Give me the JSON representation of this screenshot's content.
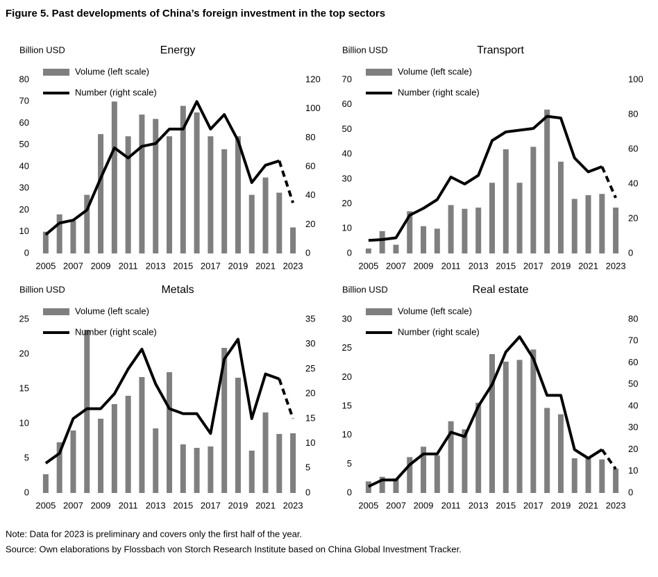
{
  "title": "Figure 5. Past developments of China’s foreign investment in the top sectors",
  "notes": [
    "Note: Data for 2023 is preliminary and covers only the first half of the year.",
    "Source: Own elaborations by Flossbach von Storch Research Institute based on China Global Investment Tracker."
  ],
  "chart_data": [
    {
      "type": "bar_line",
      "title": "Energy",
      "ylabel": "Billion USD",
      "categories": [
        "2005",
        null,
        "2007",
        null,
        "2009",
        null,
        "2011",
        null,
        "2013",
        null,
        "2015",
        null,
        "2017",
        null,
        "2019",
        null,
        "2021",
        null,
        "2023"
      ],
      "series": [
        {
          "name": "Volume (left scale)",
          "type": "bar",
          "color": "#7f7f7f",
          "values": [
            10,
            18,
            15,
            27,
            55,
            70,
            54,
            64,
            62,
            54,
            68,
            65,
            54,
            48,
            54,
            27,
            35,
            28,
            12
          ]
        },
        {
          "name": "Number (right scale)",
          "type": "line",
          "axis": "y2",
          "color": "#000000",
          "last_segment_style": "dashed",
          "values": [
            13,
            21,
            23,
            30,
            52,
            73,
            66,
            74,
            76,
            86,
            86,
            105,
            86,
            96,
            78,
            49,
            61,
            64,
            35
          ]
        }
      ],
      "ylim": [
        0,
        80
      ],
      "yticks": [
        0,
        10,
        20,
        30,
        40,
        50,
        60,
        70,
        80
      ],
      "y2lim": [
        0,
        120
      ],
      "y2ticks": [
        0,
        20,
        40,
        60,
        80,
        100,
        120
      ]
    },
    {
      "type": "bar_line",
      "title": "Transport",
      "ylabel": "Billion USD",
      "categories": [
        "2005",
        null,
        "2007",
        null,
        "2009",
        null,
        "2011",
        null,
        "2013",
        null,
        "2015",
        null,
        "2017",
        null,
        "2019",
        null,
        "2021",
        null,
        "2023"
      ],
      "series": [
        {
          "name": "Volume (left scale)",
          "type": "bar",
          "color": "#7f7f7f",
          "values": [
            2,
            9,
            3.5,
            17,
            11,
            10,
            19.5,
            18,
            18.5,
            28.5,
            42,
            28.5,
            43,
            58,
            37,
            22,
            23.5,
            24,
            18.5
          ]
        },
        {
          "name": "Number (right scale)",
          "type": "line",
          "axis": "y2",
          "color": "#000000",
          "last_segment_style": "dashed",
          "values": [
            7.5,
            8,
            9,
            22,
            26,
            31,
            44,
            40,
            45,
            65,
            70,
            71,
            72,
            79,
            78,
            55,
            47,
            50,
            32
          ]
        }
      ],
      "ylim": [
        0,
        70
      ],
      "yticks": [
        0,
        10,
        20,
        30,
        40,
        50,
        60,
        70
      ],
      "y2lim": [
        0,
        100
      ],
      "y2ticks": [
        0,
        20,
        40,
        60,
        80,
        100
      ]
    },
    {
      "type": "bar_line",
      "title": "Metals",
      "ylabel": "Billion USD",
      "categories": [
        "2005",
        null,
        "2007",
        null,
        "2009",
        null,
        "2011",
        null,
        "2013",
        null,
        "2015",
        null,
        "2017",
        null,
        "2019",
        null,
        "2021",
        null,
        "2023"
      ],
      "series": [
        {
          "name": "Volume (left scale)",
          "type": "bar",
          "color": "#7f7f7f",
          "values": [
            2.7,
            7.3,
            9,
            23.5,
            10.7,
            12.8,
            14,
            16.7,
            9.3,
            17.4,
            7,
            6.5,
            6.7,
            20.9,
            16.6,
            6.1,
            11.6,
            8.5,
            8.6
          ]
        },
        {
          "name": "Number (right scale)",
          "type": "line",
          "axis": "y2",
          "color": "#000000",
          "last_segment_style": "dashed",
          "values": [
            6,
            8,
            15,
            17,
            17,
            20,
            25,
            29,
            22,
            17,
            16,
            16,
            12,
            27,
            31,
            15,
            24,
            23,
            15
          ]
        }
      ],
      "ylim": [
        0,
        25
      ],
      "yticks": [
        0,
        5,
        10,
        15,
        20,
        25
      ],
      "y2lim": [
        0,
        35
      ],
      "y2ticks": [
        0,
        5,
        10,
        15,
        20,
        25,
        30,
        35
      ]
    },
    {
      "type": "bar_line",
      "title": "Real estate",
      "ylabel": "Billion USD",
      "categories": [
        "2005",
        null,
        "2007",
        null,
        "2009",
        null,
        "2011",
        null,
        "2013",
        null,
        "2015",
        null,
        "2017",
        null,
        "2019",
        null,
        "2021",
        null,
        "2023"
      ],
      "series": [
        {
          "name": "Volume (left scale)",
          "type": "bar",
          "color": "#7f7f7f",
          "values": [
            2,
            2.8,
            2.5,
            6.2,
            8,
            6.5,
            12.4,
            11,
            15.6,
            24,
            22.7,
            23,
            24.8,
            14.7,
            13.6,
            6,
            6,
            5.8,
            4.2
          ]
        },
        {
          "name": "Number (right scale)",
          "type": "line",
          "axis": "y2",
          "color": "#000000",
          "last_segment_style": "dashed",
          "values": [
            3,
            6,
            6,
            13,
            18,
            18,
            28,
            26,
            40,
            50,
            65,
            72,
            62,
            45,
            45,
            20,
            16,
            20,
            11
          ]
        }
      ],
      "ylim": [
        0,
        30
      ],
      "yticks": [
        0,
        5,
        10,
        15,
        20,
        25,
        30
      ],
      "y2lim": [
        0,
        80
      ],
      "y2ticks": [
        0,
        10,
        20,
        30,
        40,
        50,
        60,
        70,
        80
      ]
    }
  ]
}
